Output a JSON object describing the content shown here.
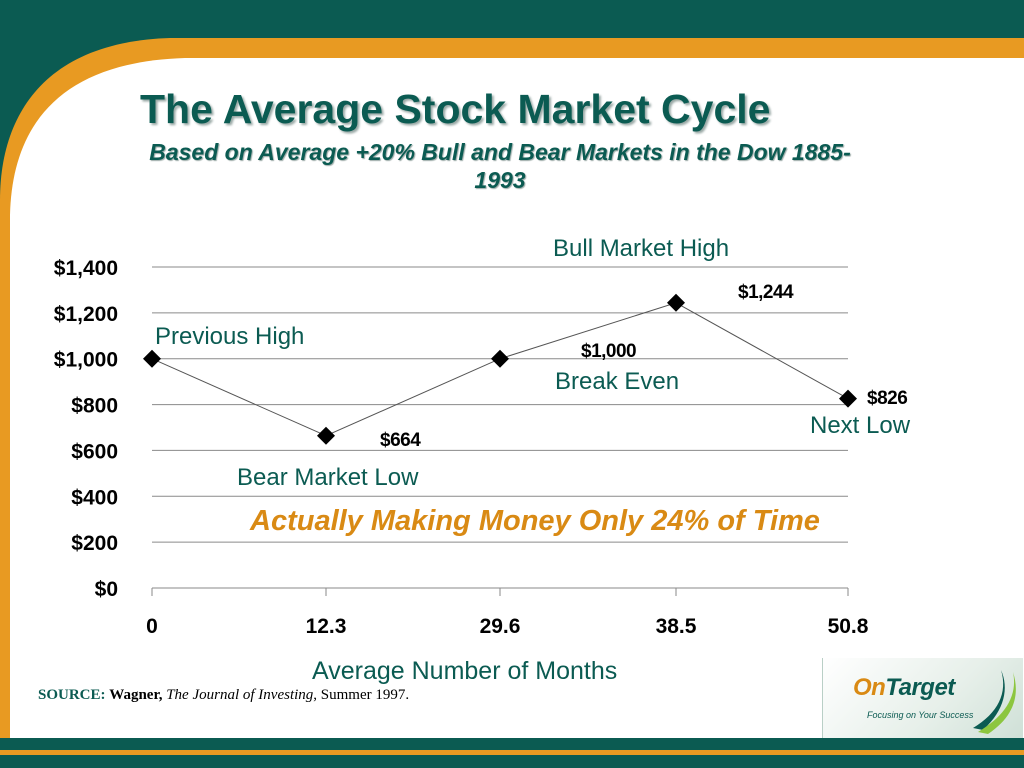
{
  "slide": {
    "title": "The Average Stock Market Cycle",
    "subtitle": "Based on Average +20% Bull and Bear Markets in the Dow 1885-1993",
    "callout": "Actually Making Money Only 24% of Time",
    "colors": {
      "teal": "#0b5b52",
      "orange": "#e89a22",
      "callout": "#d98a14"
    }
  },
  "chart_data": {
    "type": "line",
    "title": "",
    "xlabel": "Average Number of Months",
    "ylabel": "",
    "categories": [
      "0",
      "12.3",
      "29.6",
      "38.5",
      "50.8"
    ],
    "values": [
      1000,
      664,
      1000,
      1244,
      826
    ],
    "ylim": [
      0,
      1400
    ],
    "y_ticks": [
      "$0",
      "$200",
      "$400",
      "$600",
      "$800",
      "$1,000",
      "$1,200",
      "$1,400"
    ],
    "grid": true,
    "marker": "diamond",
    "point_labels": [
      "",
      "$664",
      "$1,000",
      "$1,244",
      "$826"
    ],
    "annotations": [
      "Previous High",
      "Bear Market Low",
      "Break Even",
      "Bull Market High",
      "Next Low"
    ]
  },
  "source": {
    "label": "SOURCE:",
    "author": "Wagner,",
    "publication": "The Journal of Investing",
    "comma": ",",
    "date": " Summer 1997."
  },
  "logo": {
    "name_part1": "On",
    "name_part2": "Target",
    "tagline": "Focusing on Your Success",
    "swoosh": "swoosh-icon"
  }
}
